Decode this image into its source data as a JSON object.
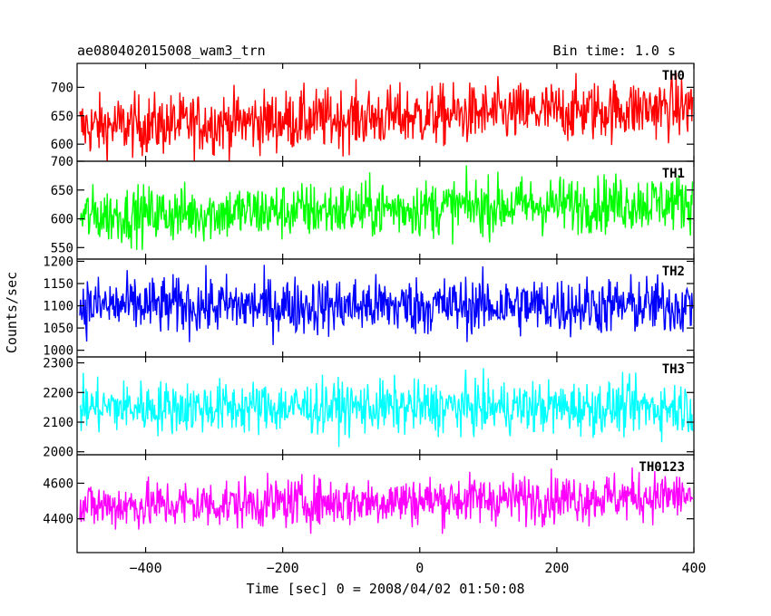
{
  "header": {
    "title": "ae080402015008_wam3_trn",
    "bin_time": "Bin time: 1.0 s"
  },
  "axes": {
    "ylabel": "Counts/sec",
    "xlabel": "Time [sec] 0 = 2008/04/02 01:50:08"
  },
  "chart_data": {
    "type": "line",
    "x_range": [
      -500,
      400
    ],
    "x_ticks": [
      -400,
      -200,
      0,
      200,
      400
    ],
    "x_tick_labels": [
      "−400",
      "−200",
      "0",
      "200",
      "400"
    ],
    "x_unit": "sec",
    "grid": false,
    "panels": [
      {
        "name": "TH0",
        "color": "#ff0000",
        "ylim": [
          570,
          742
        ],
        "yticks": [
          600,
          650,
          700
        ],
        "mean_start": 630,
        "mean_end": 665,
        "spread": 27
      },
      {
        "name": "TH1",
        "color": "#00ff00",
        "ylim": [
          530,
          700
        ],
        "yticks": [
          550,
          600,
          650,
          700
        ],
        "mean_start": 605,
        "mean_end": 630,
        "spread": 25
      },
      {
        "name": "TH2",
        "color": "#0000ff",
        "ylim": [
          985,
          1205
        ],
        "yticks": [
          1000,
          1050,
          1100,
          1150,
          1200
        ],
        "mean_start": 1100,
        "mean_end": 1100,
        "spread": 33
      },
      {
        "name": "TH3",
        "color": "#00ffff",
        "ylim": [
          1990,
          2320
        ],
        "yticks": [
          2000,
          2100,
          2200,
          2300
        ],
        "mean_start": 2150,
        "mean_end": 2150,
        "spread": 45
      },
      {
        "name": "TH0123",
        "color": "#ff00ff",
        "ylim": [
          4210,
          4760
        ],
        "yticks": [
          4400,
          4600
        ],
        "mean_start": 4470,
        "mean_end": 4530,
        "spread": 70
      }
    ]
  }
}
